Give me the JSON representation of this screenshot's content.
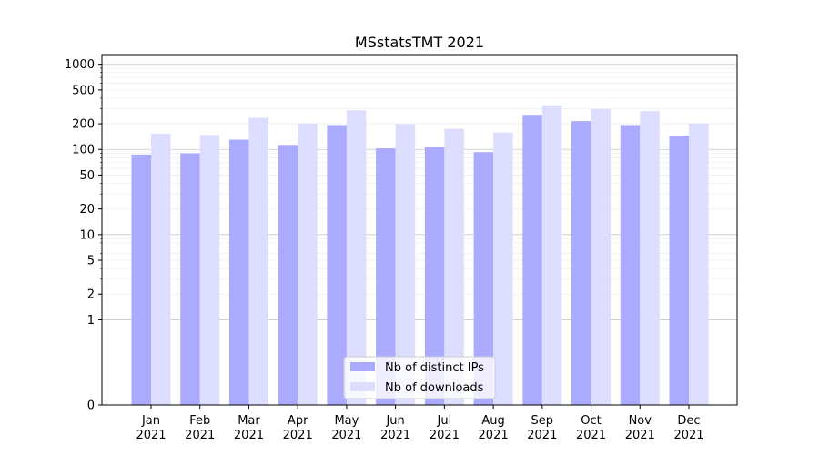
{
  "chart_data": {
    "type": "bar",
    "title": "MSstatsTMT 2021",
    "xlabel": "",
    "ylabel": "",
    "y_scale": "symlog",
    "ylim": [
      0,
      1300
    ],
    "y_ticks": [
      0,
      1,
      2,
      5,
      10,
      20,
      50,
      100,
      200,
      500,
      1000
    ],
    "categories": [
      [
        "Jan",
        "2021"
      ],
      [
        "Feb",
        "2021"
      ],
      [
        "Mar",
        "2021"
      ],
      [
        "Apr",
        "2021"
      ],
      [
        "May",
        "2021"
      ],
      [
        "Jun",
        "2021"
      ],
      [
        "Jul",
        "2021"
      ],
      [
        "Aug",
        "2021"
      ],
      [
        "Sep",
        "2021"
      ],
      [
        "Oct",
        "2021"
      ],
      [
        "Nov",
        "2021"
      ],
      [
        "Dec",
        "2021"
      ]
    ],
    "series": [
      {
        "name": "Nb of distinct IPs",
        "color": "#aaaaff",
        "values": [
          87,
          90,
          130,
          113,
          193,
          103,
          107,
          93,
          255,
          215,
          193,
          145
        ]
      },
      {
        "name": "Nb of downloads",
        "color": "#ddddff",
        "values": [
          153,
          148,
          235,
          203,
          288,
          198,
          175,
          158,
          330,
          298,
          282,
          203
        ]
      }
    ],
    "legend_position": "bottom-center",
    "grid": true
  }
}
